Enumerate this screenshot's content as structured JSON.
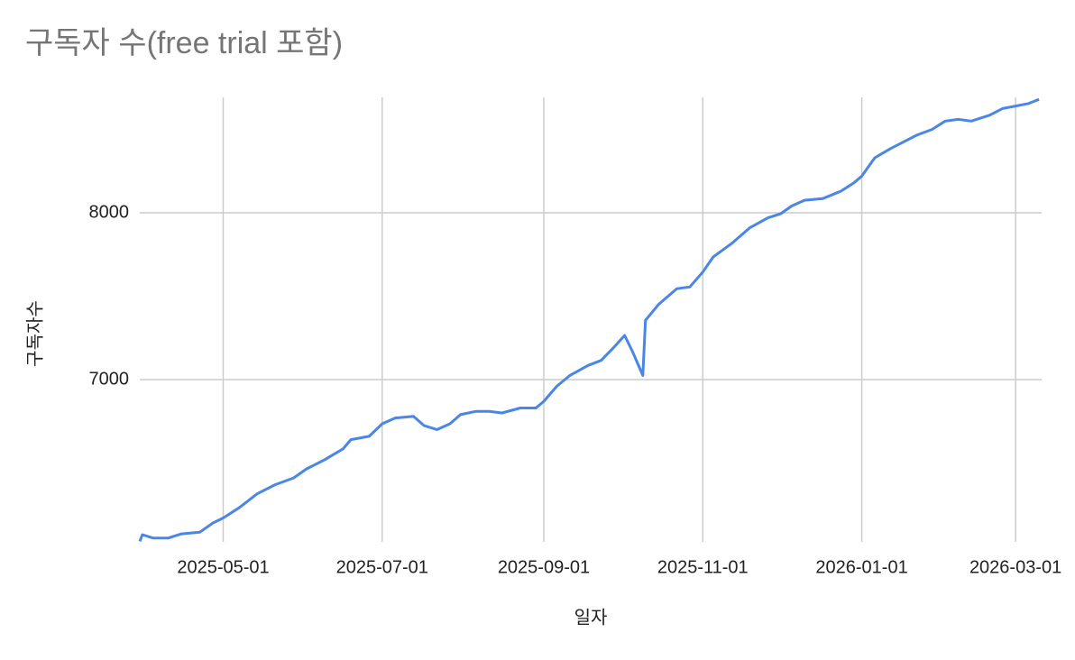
{
  "chart_data": {
    "type": "line",
    "title": "구독자 수(free trial 포함)",
    "x_label": "일자",
    "y_label": "구독자수",
    "x": [
      "2025-03-30",
      "2025-03-31",
      "2025-04-04",
      "2025-04-10",
      "2025-04-15",
      "2025-04-22",
      "2025-04-27",
      "2025-05-01",
      "2025-05-07",
      "2025-05-14",
      "2025-05-21",
      "2025-05-28",
      "2025-06-02",
      "2025-06-09",
      "2025-06-16",
      "2025-06-19",
      "2025-06-26",
      "2025-07-01",
      "2025-07-06",
      "2025-07-13",
      "2025-07-17",
      "2025-07-22",
      "2025-07-27",
      "2025-07-31",
      "2025-08-06",
      "2025-08-11",
      "2025-08-16",
      "2025-08-23",
      "2025-08-29",
      "2025-09-01",
      "2025-09-06",
      "2025-09-11",
      "2025-09-18",
      "2025-09-23",
      "2025-09-28",
      "2025-10-02",
      "2025-10-05",
      "2025-10-09",
      "2025-10-10",
      "2025-10-15",
      "2025-10-22",
      "2025-10-27",
      "2025-11-01",
      "2025-11-05",
      "2025-11-12",
      "2025-11-19",
      "2025-11-26",
      "2025-12-01",
      "2025-12-05",
      "2025-12-10",
      "2025-12-17",
      "2025-12-24",
      "2025-12-29",
      "2026-01-01",
      "2026-01-06",
      "2026-01-12",
      "2026-01-17",
      "2026-01-22",
      "2026-01-28",
      "2026-02-02",
      "2026-02-07",
      "2026-02-12",
      "2026-02-19",
      "2026-02-24",
      "2026-03-01",
      "2026-03-06",
      "2026-03-10"
    ],
    "values": [
      6030,
      6070,
      6050,
      6050,
      6075,
      6085,
      6140,
      6170,
      6230,
      6315,
      6370,
      6410,
      6465,
      6520,
      6585,
      6640,
      6660,
      6735,
      6770,
      6780,
      6725,
      6700,
      6735,
      6790,
      6810,
      6810,
      6800,
      6830,
      6830,
      6870,
      6960,
      7025,
      7085,
      7115,
      7195,
      7265,
      7170,
      7025,
      7355,
      7450,
      7545,
      7555,
      7645,
      7735,
      7815,
      7910,
      7970,
      7995,
      8040,
      8075,
      8085,
      8130,
      8180,
      8220,
      8330,
      8385,
      8425,
      8465,
      8500,
      8550,
      8560,
      8550,
      8585,
      8625,
      8640,
      8655,
      8680
    ],
    "color": "#4a86e8",
    "xlim": [
      "2025-03-30",
      "2026-03-11"
    ],
    "xticks": [
      "2025-05-01",
      "2025-07-01",
      "2025-09-01",
      "2025-11-01",
      "2026-01-01",
      "2026-03-01"
    ],
    "ylim": [
      6027,
      8692
    ],
    "yticks": [
      7000,
      8000
    ],
    "grid": true
  }
}
